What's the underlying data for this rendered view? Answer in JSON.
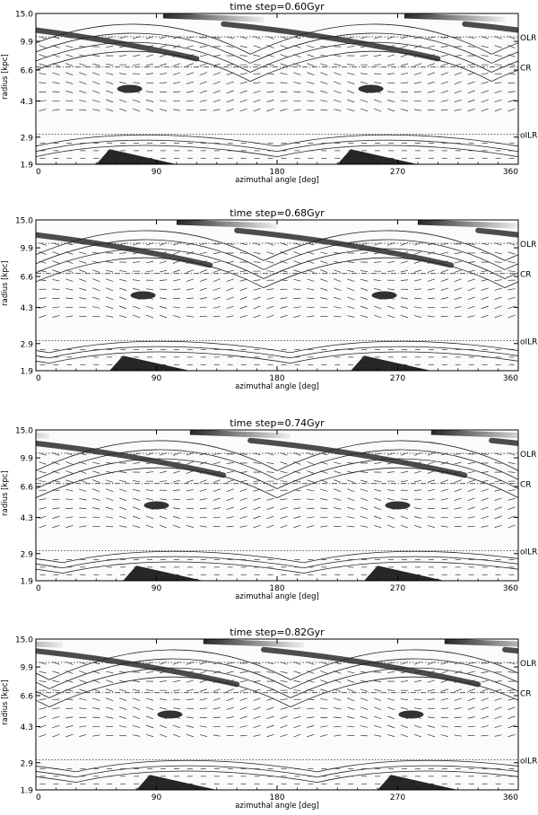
{
  "chart_data": [
    {
      "type": "heatmap",
      "title": "time step=0.60Gyr",
      "xlabel": "azimuthal angle [deg]",
      "ylabel": "radius [kpc]",
      "xlim": [
        0,
        360
      ],
      "xticks": [
        "0",
        "90",
        "180",
        "270",
        "360"
      ],
      "yticks": [
        "1.9",
        "2.9",
        "4.3",
        "6.6",
        "9.9",
        "15.0"
      ],
      "resonances": [
        {
          "label": "OLR",
          "radius": 10.2
        },
        {
          "label": "CR",
          "radius": 7.0
        },
        {
          "label": "oILR",
          "radius": 3.0
        }
      ]
    },
    {
      "type": "heatmap",
      "title": "time step=0.68Gyr",
      "xlabel": "azimuthal angle [deg]",
      "ylabel": "radius [kpc]",
      "xlim": [
        0,
        360
      ],
      "xticks": [
        "0",
        "90",
        "180",
        "270",
        "360"
      ],
      "yticks": [
        "1.9",
        "2.9",
        "4.3",
        "6.6",
        "9.9",
        "15.0"
      ],
      "resonances": [
        {
          "label": "OLR",
          "radius": 10.2
        },
        {
          "label": "CR",
          "radius": 7.0
        },
        {
          "label": "oILR",
          "radius": 3.0
        }
      ]
    },
    {
      "type": "heatmap",
      "title": "time step=0.74Gyr",
      "xlabel": "azimuthal angle [deg]",
      "ylabel": "radius [kpc]",
      "xlim": [
        0,
        360
      ],
      "xticks": [
        "0",
        "90",
        "180",
        "270",
        "360"
      ],
      "yticks": [
        "1.9",
        "2.9",
        "4.3",
        "6.6",
        "9.9",
        "15.0"
      ],
      "resonances": [
        {
          "label": "OLR",
          "radius": 10.2
        },
        {
          "label": "CR",
          "radius": 7.0
        },
        {
          "label": "oILR",
          "radius": 3.0
        }
      ]
    },
    {
      "type": "heatmap",
      "title": "time step=0.82Gyr",
      "xlabel": "azimuthal angle [deg]",
      "ylabel": "radius [kpc]",
      "xlim": [
        0,
        360
      ],
      "xticks": [
        "0",
        "90",
        "180",
        "270",
        "360"
      ],
      "yticks": [
        "1.9",
        "2.9",
        "4.3",
        "6.6",
        "9.9",
        "15.0"
      ],
      "resonances": [
        {
          "label": "OLR",
          "radius": 10.2
        },
        {
          "label": "CR",
          "radius": 7.0
        },
        {
          "label": "oILR",
          "radius": 3.0
        }
      ]
    }
  ]
}
